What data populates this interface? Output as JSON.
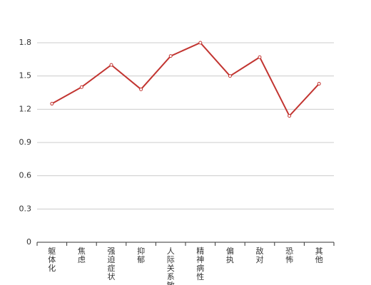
{
  "chart_data": {
    "type": "line",
    "categories": [
      "躯体化",
      "焦虑",
      "强迫症状",
      "抑郁",
      "人际关系敏感",
      "精神病性",
      "偏执",
      "敌对",
      "恐怖",
      "其他"
    ],
    "values": [
      1.25,
      1.4,
      1.6,
      1.38,
      1.68,
      1.8,
      1.5,
      1.67,
      1.14,
      1.43
    ],
    "color": "#c23531",
    "ylim": [
      0,
      1.8
    ],
    "yticks": [
      0,
      0.3,
      0.6,
      0.9,
      1.2,
      1.5,
      1.8
    ],
    "grid": true
  }
}
